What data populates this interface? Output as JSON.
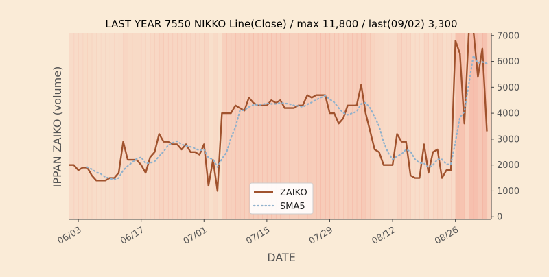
{
  "chart_data": {
    "type": "line",
    "title": "LAST YEAR 7550 NIKKO Line(Close) / max 11,800 / last(09/02) 3,300",
    "xlabel": "DATE",
    "ylabel": "IPPAN ZAIKO (volume)",
    "x_start": "2019-06-01",
    "x_end": "2019-09-03",
    "xticks": [
      {
        "date": "2019-06-03",
        "label": "06/03"
      },
      {
        "date": "2019-06-17",
        "label": "06/17"
      },
      {
        "date": "2019-07-01",
        "label": "07/01"
      },
      {
        "date": "2019-07-15",
        "label": "07/15"
      },
      {
        "date": "2019-07-29",
        "label": "07/29"
      },
      {
        "date": "2019-08-12",
        "label": "08/12"
      },
      {
        "date": "2019-08-26",
        "label": "08/26"
      }
    ],
    "ylim": [
      -100,
      7100
    ],
    "yticks": [
      0,
      1000,
      2000,
      3000,
      4000,
      5000,
      6000,
      7000
    ],
    "ytick_labels": [
      "0",
      "1000",
      "2000",
      "3000",
      "4000",
      "5000",
      "6000",
      "7000"
    ],
    "legend_position": "bottom-center",
    "background_bands": true,
    "colors": {
      "background": "#faebd7",
      "zaiko": "#a0522d",
      "sma5": "#8fb1cc",
      "band": "#f08070"
    },
    "series": [
      {
        "name": "ZAIKO",
        "style": "solid",
        "points": [
          [
            "2019-06-01",
            2000
          ],
          [
            "2019-06-02",
            2000
          ],
          [
            "2019-06-03",
            1800
          ],
          [
            "2019-06-04",
            1900
          ],
          [
            "2019-06-05",
            1900
          ],
          [
            "2019-06-06",
            1600
          ],
          [
            "2019-06-07",
            1400
          ],
          [
            "2019-06-08",
            1400
          ],
          [
            "2019-06-09",
            1400
          ],
          [
            "2019-06-10",
            1500
          ],
          [
            "2019-06-11",
            1500
          ],
          [
            "2019-06-12",
            1700
          ],
          [
            "2019-06-13",
            2900
          ],
          [
            "2019-06-14",
            2200
          ],
          [
            "2019-06-15",
            2200
          ],
          [
            "2019-06-16",
            2200
          ],
          [
            "2019-06-17",
            2000
          ],
          [
            "2019-06-18",
            1700
          ],
          [
            "2019-06-19",
            2300
          ],
          [
            "2019-06-20",
            2500
          ],
          [
            "2019-06-21",
            3200
          ],
          [
            "2019-06-22",
            2900
          ],
          [
            "2019-06-23",
            2900
          ],
          [
            "2019-06-24",
            2800
          ],
          [
            "2019-06-25",
            2800
          ],
          [
            "2019-06-26",
            2600
          ],
          [
            "2019-06-27",
            2800
          ],
          [
            "2019-06-28",
            2500
          ],
          [
            "2019-06-29",
            2500
          ],
          [
            "2019-06-30",
            2400
          ],
          [
            "2019-07-01",
            2800
          ],
          [
            "2019-07-02",
            1200
          ],
          [
            "2019-07-03",
            2200
          ],
          [
            "2019-07-04",
            1000
          ],
          [
            "2019-07-05",
            4000
          ],
          [
            "2019-07-06",
            4000
          ],
          [
            "2019-07-07",
            4000
          ],
          [
            "2019-07-08",
            4300
          ],
          [
            "2019-07-09",
            4200
          ],
          [
            "2019-07-10",
            4100
          ],
          [
            "2019-07-11",
            4600
          ],
          [
            "2019-07-12",
            4400
          ],
          [
            "2019-07-13",
            4300
          ],
          [
            "2019-07-14",
            4300
          ],
          [
            "2019-07-15",
            4300
          ],
          [
            "2019-07-16",
            4500
          ],
          [
            "2019-07-17",
            4400
          ],
          [
            "2019-07-18",
            4500
          ],
          [
            "2019-07-19",
            4200
          ],
          [
            "2019-07-20",
            4200
          ],
          [
            "2019-07-21",
            4200
          ],
          [
            "2019-07-22",
            4300
          ],
          [
            "2019-07-23",
            4300
          ],
          [
            "2019-07-24",
            4700
          ],
          [
            "2019-07-25",
            4600
          ],
          [
            "2019-07-26",
            4700
          ],
          [
            "2019-07-27",
            4700
          ],
          [
            "2019-07-28",
            4700
          ],
          [
            "2019-07-29",
            4000
          ],
          [
            "2019-07-30",
            4000
          ],
          [
            "2019-07-31",
            3600
          ],
          [
            "2019-08-01",
            3800
          ],
          [
            "2019-08-02",
            4300
          ],
          [
            "2019-08-03",
            4300
          ],
          [
            "2019-08-04",
            4300
          ],
          [
            "2019-08-05",
            5100
          ],
          [
            "2019-08-06",
            4000
          ],
          [
            "2019-08-07",
            3300
          ],
          [
            "2019-08-08",
            2600
          ],
          [
            "2019-08-09",
            2500
          ],
          [
            "2019-08-10",
            2000
          ],
          [
            "2019-08-11",
            2000
          ],
          [
            "2019-08-12",
            2000
          ],
          [
            "2019-08-13",
            3200
          ],
          [
            "2019-08-14",
            2900
          ],
          [
            "2019-08-15",
            2900
          ],
          [
            "2019-08-16",
            1600
          ],
          [
            "2019-08-17",
            1500
          ],
          [
            "2019-08-18",
            1500
          ],
          [
            "2019-08-19",
            2800
          ],
          [
            "2019-08-20",
            1700
          ],
          [
            "2019-08-21",
            2500
          ],
          [
            "2019-08-22",
            2600
          ],
          [
            "2019-08-23",
            1500
          ],
          [
            "2019-08-24",
            1800
          ],
          [
            "2019-08-25",
            1800
          ],
          [
            "2019-08-26",
            6800
          ],
          [
            "2019-08-27",
            6300
          ],
          [
            "2019-08-28",
            3600
          ],
          [
            "2019-08-29",
            7200
          ],
          [
            "2019-08-30",
            7200
          ],
          [
            "2019-08-31",
            5400
          ],
          [
            "2019-09-01",
            6500
          ],
          [
            "2019-09-02",
            3300
          ]
        ]
      },
      {
        "name": "SMA5",
        "style": "dotted",
        "points": [
          [
            "2019-06-05",
            1920
          ],
          [
            "2019-06-06",
            1840
          ],
          [
            "2019-06-07",
            1720
          ],
          [
            "2019-06-08",
            1660
          ],
          [
            "2019-06-09",
            1540
          ],
          [
            "2019-06-10",
            1480
          ],
          [
            "2019-06-11",
            1440
          ],
          [
            "2019-06-12",
            1500
          ],
          [
            "2019-06-13",
            1800
          ],
          [
            "2019-06-14",
            1960
          ],
          [
            "2019-06-15",
            2100
          ],
          [
            "2019-06-16",
            2240
          ],
          [
            "2019-06-17",
            2300
          ],
          [
            "2019-06-18",
            2060
          ],
          [
            "2019-06-19",
            2080
          ],
          [
            "2019-06-20",
            2140
          ],
          [
            "2019-06-21",
            2340
          ],
          [
            "2019-06-22",
            2520
          ],
          [
            "2019-06-23",
            2760
          ],
          [
            "2019-06-24",
            2860
          ],
          [
            "2019-06-25",
            2920
          ],
          [
            "2019-06-26",
            2800
          ],
          [
            "2019-06-27",
            2740
          ],
          [
            "2019-06-28",
            2700
          ],
          [
            "2019-06-29",
            2640
          ],
          [
            "2019-06-30",
            2560
          ],
          [
            "2019-07-01",
            2600
          ],
          [
            "2019-07-02",
            2280
          ],
          [
            "2019-07-03",
            2220
          ],
          [
            "2019-07-04",
            1920
          ],
          [
            "2019-07-05",
            2240
          ],
          [
            "2019-07-06",
            2480
          ],
          [
            "2019-07-07",
            3040
          ],
          [
            "2019-07-08",
            3460
          ],
          [
            "2019-07-09",
            4100
          ],
          [
            "2019-07-10",
            4120
          ],
          [
            "2019-07-11",
            4240
          ],
          [
            "2019-07-12",
            4320
          ],
          [
            "2019-07-13",
            4320
          ],
          [
            "2019-07-14",
            4340
          ],
          [
            "2019-07-15",
            4380
          ],
          [
            "2019-07-16",
            4360
          ],
          [
            "2019-07-17",
            4360
          ],
          [
            "2019-07-18",
            4400
          ],
          [
            "2019-07-19",
            4380
          ],
          [
            "2019-07-20",
            4360
          ],
          [
            "2019-07-21",
            4300
          ],
          [
            "2019-07-22",
            4280
          ],
          [
            "2019-07-23",
            4240
          ],
          [
            "2019-07-24",
            4340
          ],
          [
            "2019-07-25",
            4420
          ],
          [
            "2019-07-26",
            4520
          ],
          [
            "2019-07-27",
            4600
          ],
          [
            "2019-07-28",
            4680
          ],
          [
            "2019-07-29",
            4540
          ],
          [
            "2019-07-30",
            4420
          ],
          [
            "2019-07-31",
            4200
          ],
          [
            "2019-08-01",
            4020
          ],
          [
            "2019-08-02",
            3940
          ],
          [
            "2019-08-03",
            4000
          ],
          [
            "2019-08-04",
            4060
          ],
          [
            "2019-08-05",
            4360
          ],
          [
            "2019-08-06",
            4400
          ],
          [
            "2019-08-07",
            4200
          ],
          [
            "2019-08-08",
            3860
          ],
          [
            "2019-08-09",
            3500
          ],
          [
            "2019-08-10",
            2880
          ],
          [
            "2019-08-11",
            2480
          ],
          [
            "2019-08-12",
            2220
          ],
          [
            "2019-08-13",
            2340
          ],
          [
            "2019-08-14",
            2420
          ],
          [
            "2019-08-15",
            2600
          ],
          [
            "2019-08-16",
            2520
          ],
          [
            "2019-08-17",
            2220
          ],
          [
            "2019-08-18",
            2080
          ],
          [
            "2019-08-19",
            2060
          ],
          [
            "2019-08-20",
            1900
          ],
          [
            "2019-08-21",
            2000
          ],
          [
            "2019-08-22",
            2220
          ],
          [
            "2019-08-23",
            2220
          ],
          [
            "2019-08-24",
            2020
          ],
          [
            "2019-08-25",
            2040
          ],
          [
            "2019-08-26",
            2900
          ],
          [
            "2019-08-27",
            3840
          ],
          [
            "2019-08-28",
            4060
          ],
          [
            "2019-08-29",
            5140
          ],
          [
            "2019-08-30",
            6220
          ],
          [
            "2019-08-31",
            5940
          ],
          [
            "2019-09-01",
            5980
          ],
          [
            "2019-09-02",
            5920
          ]
        ]
      }
    ]
  }
}
